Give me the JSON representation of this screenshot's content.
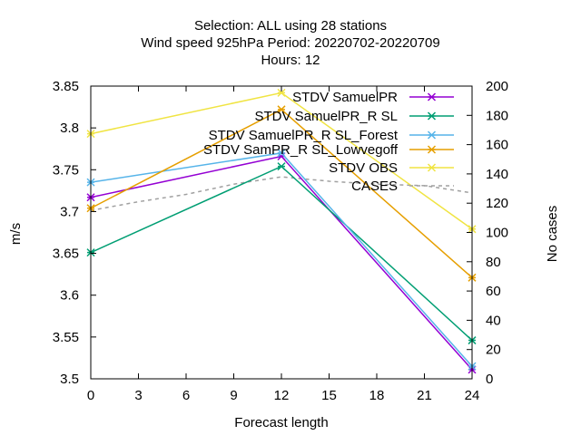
{
  "chart_data": {
    "type": "line",
    "title_lines": [
      "Selection: ALL using    28 stations",
      "Wind speed 925hPa   Period: 20220702-20220709",
      "Hours:  12"
    ],
    "xlabel": "Forecast length",
    "ylabel": "m/s",
    "y2label": "No cases",
    "x": [
      0,
      12,
      24
    ],
    "xticks": [
      0,
      3,
      6,
      9,
      12,
      15,
      18,
      21,
      24
    ],
    "xlim": [
      0,
      24
    ],
    "ylim": [
      3.5,
      3.85
    ],
    "yticks": [
      "3.5",
      "3.55",
      "3.6",
      "3.65",
      "3.7",
      "3.75",
      "3.8",
      "3.85"
    ],
    "y2lim": [
      0,
      200
    ],
    "y2ticks": [
      0,
      20,
      40,
      60,
      80,
      100,
      120,
      140,
      160,
      180,
      200
    ],
    "grid": false,
    "legend_position": "top-right",
    "series": [
      {
        "name": "STDV SamuelPR",
        "color": "#9400d3",
        "values": [
          3.717,
          3.766,
          3.511
        ]
      },
      {
        "name": "STDV SamuelPR_R SL",
        "color": "#009e73",
        "values": [
          3.651,
          3.754,
          3.546
        ]
      },
      {
        "name": "STDV SamuelPR_R SL_Forest",
        "color": "#56b4e9",
        "values": [
          3.735,
          3.77,
          3.515
        ]
      },
      {
        "name": "STDV SamPR_R SL_Lowvegoff",
        "color": "#e69f00",
        "values": [
          3.704,
          3.822,
          3.621
        ]
      },
      {
        "name": "STDV OBS",
        "color": "#f0e442",
        "values": [
          3.793,
          3.842,
          3.679
        ]
      }
    ],
    "cases": {
      "name": "CASES",
      "color": "#a0a0a0",
      "x": [
        0,
        3,
        6,
        9,
        12,
        15,
        18,
        21,
        24
      ],
      "values": [
        115,
        121,
        126,
        133,
        138,
        135,
        133,
        132,
        127
      ]
    },
    "legend_labels": [
      "STDV SamuelPR",
      "STDV SamuelPR_R SL",
      "STDV SamuelPR_R SL_Forest",
      "STDV SamPR_R SL_Lowvegoff",
      "STDV OBS",
      "CASES"
    ]
  }
}
